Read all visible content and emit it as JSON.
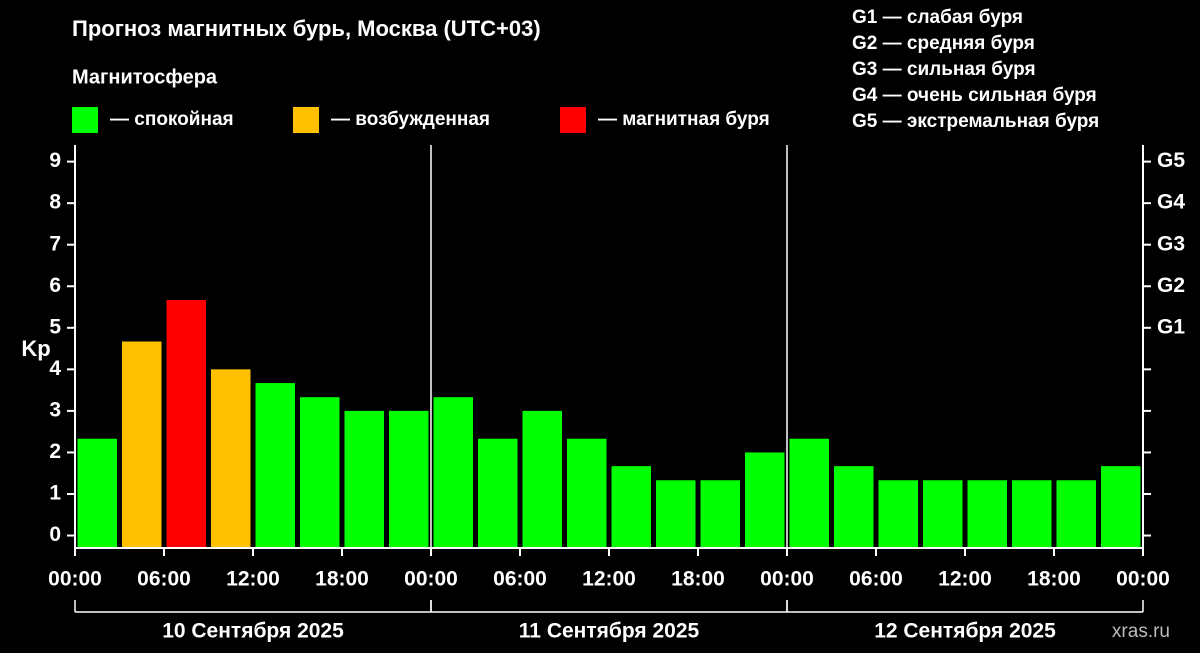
{
  "chart_data": {
    "type": "bar",
    "title": "Прогноз магнитных бурь, Москва (UTC+03)",
    "legend_title": "Магнитосфера",
    "legend": [
      {
        "name": "— спокойная",
        "color": "#00ff00"
      },
      {
        "name": "— возбужденная",
        "color": "#ffc000"
      },
      {
        "name": "— магнитная буря",
        "color": "#ff0000"
      }
    ],
    "g_levels": [
      "G1 — слабая буря",
      "G2 — средняя буря",
      "G3 — сильная буря",
      "G4 — очень сильная буря",
      "G5 — экстремальная буря"
    ],
    "ylabel": "Kp",
    "x": [
      1.5,
      4.5,
      7.5,
      10.5,
      13.5,
      16.5,
      19.5,
      22.5,
      25.5,
      28.5,
      31.5,
      34.5,
      37.5,
      40.5,
      43.5,
      46.5,
      49.5,
      52.5,
      55.5,
      58.5,
      61.5,
      64.5,
      67.5,
      70.5
    ],
    "values": [
      2.33,
      4.67,
      5.67,
      4.0,
      3.67,
      3.33,
      3.0,
      3.0,
      3.33,
      2.33,
      3.0,
      2.33,
      1.67,
      1.33,
      1.33,
      2.0,
      2.33,
      1.67,
      1.33,
      1.33,
      1.33,
      1.33,
      1.33,
      1.67
    ],
    "colors": [
      "#00ff00",
      "#ffc000",
      "#ff0000",
      "#ffc000",
      "#00ff00",
      "#00ff00",
      "#00ff00",
      "#00ff00",
      "#00ff00",
      "#00ff00",
      "#00ff00",
      "#00ff00",
      "#00ff00",
      "#00ff00",
      "#00ff00",
      "#00ff00",
      "#00ff00",
      "#00ff00",
      "#00ff00",
      "#00ff00",
      "#00ff00",
      "#00ff00",
      "#00ff00",
      "#00ff00"
    ],
    "bar_width": 3,
    "xlim": [
      0,
      72
    ],
    "xticks": [
      {
        "value": 0,
        "label": "00:00"
      },
      {
        "value": 6,
        "label": "06:00"
      },
      {
        "value": 12,
        "label": "12:00"
      },
      {
        "value": 18,
        "label": "18:00"
      },
      {
        "value": 24,
        "label": "00:00"
      },
      {
        "value": 30,
        "label": "06:00"
      },
      {
        "value": 36,
        "label": "12:00"
      },
      {
        "value": 42,
        "label": "18:00"
      },
      {
        "value": 48,
        "label": "00:00"
      },
      {
        "value": 54,
        "label": "06:00"
      },
      {
        "value": 60,
        "label": "12:00"
      },
      {
        "value": 66,
        "label": "18:00"
      },
      {
        "value": 72,
        "label": "00:00"
      }
    ],
    "days": [
      {
        "label": "10 Сентября 2025",
        "range": [
          0,
          24
        ]
      },
      {
        "label": "11 Сентября 2025",
        "range": [
          24,
          48
        ]
      },
      {
        "label": "12 Сентября 2025",
        "range": [
          48,
          72
        ]
      }
    ],
    "ylim": [
      -0.3,
      9.4
    ],
    "yticks": [
      0,
      1,
      2,
      3,
      4,
      5,
      6,
      7,
      8,
      9
    ],
    "y2lim": [
      -0.3,
      9.4
    ],
    "y2ticks": [
      {
        "value": 5,
        "label": "G1"
      },
      {
        "value": 6,
        "label": "G2"
      },
      {
        "value": 7,
        "label": "G3"
      },
      {
        "value": 8,
        "label": "G4"
      },
      {
        "value": 9,
        "label": "G5"
      }
    ],
    "watermark": "xras.ru"
  }
}
